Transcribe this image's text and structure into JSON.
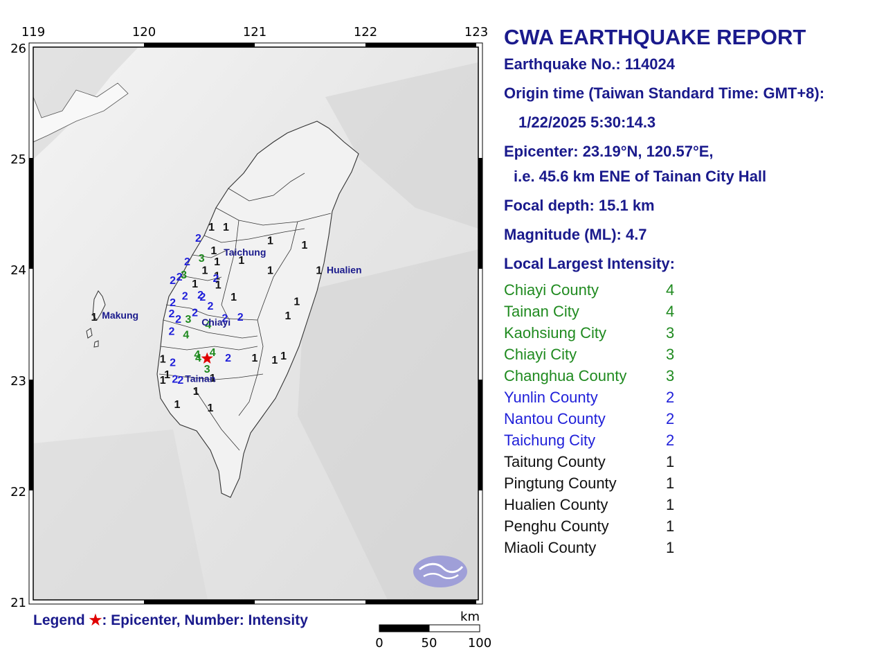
{
  "map": {
    "lon_ticks": [
      "119",
      "120",
      "121",
      "122",
      "123"
    ],
    "lat_ticks": [
      "26",
      "25",
      "24",
      "23",
      "22",
      "21"
    ],
    "cities": [
      {
        "name": "Taichung",
        "lon": 120.72,
        "lat": 24.15
      },
      {
        "name": "Hualien",
        "lon": 121.65,
        "lat": 23.99
      },
      {
        "name": "Makung",
        "lon": 119.62,
        "lat": 23.58
      },
      {
        "name": "Chiayi",
        "lon": 120.52,
        "lat": 23.52
      },
      {
        "name": "Tainan",
        "lon": 120.37,
        "lat": 23.01
      }
    ],
    "epicenter": {
      "lat": 23.19,
      "lon": 120.57
    },
    "intensity_colors": {
      "1": "#111111",
      "2": "#1f1fd9",
      "3": "#1f8a1f",
      "4": "#1f8a1f"
    },
    "intensity_points": [
      {
        "v": 1,
        "lon": 120.61,
        "lat": 24.38
      },
      {
        "v": 1,
        "lon": 120.74,
        "lat": 24.38
      },
      {
        "v": 2,
        "lon": 120.49,
        "lat": 24.28
      },
      {
        "v": 1,
        "lon": 120.63,
        "lat": 24.17
      },
      {
        "v": 1,
        "lon": 121.14,
        "lat": 24.26
      },
      {
        "v": 1,
        "lon": 121.45,
        "lat": 24.22
      },
      {
        "v": 2,
        "lon": 120.39,
        "lat": 24.07
      },
      {
        "v": 3,
        "lon": 120.52,
        "lat": 24.1
      },
      {
        "v": 1,
        "lon": 120.66,
        "lat": 24.07
      },
      {
        "v": 1,
        "lon": 120.88,
        "lat": 24.08
      },
      {
        "v": 1,
        "lon": 120.55,
        "lat": 23.99
      },
      {
        "v": 1,
        "lon": 120.66,
        "lat": 23.94
      },
      {
        "v": 1,
        "lon": 121.14,
        "lat": 23.99
      },
      {
        "v": 1,
        "lon": 121.58,
        "lat": 23.99
      },
      {
        "v": 2,
        "lon": 120.26,
        "lat": 23.9
      },
      {
        "v": 2,
        "lon": 120.32,
        "lat": 23.93
      },
      {
        "v": 3,
        "lon": 120.36,
        "lat": 23.95
      },
      {
        "v": 2,
        "lon": 120.65,
        "lat": 23.92
      },
      {
        "v": 1,
        "lon": 120.67,
        "lat": 23.86
      },
      {
        "v": 1,
        "lon": 120.46,
        "lat": 23.87
      },
      {
        "v": 2,
        "lon": 120.51,
        "lat": 23.77
      },
      {
        "v": 2,
        "lon": 120.53,
        "lat": 23.75
      },
      {
        "v": 2,
        "lon": 120.37,
        "lat": 23.76
      },
      {
        "v": 1,
        "lon": 120.81,
        "lat": 23.75
      },
      {
        "v": 2,
        "lon": 120.26,
        "lat": 23.7
      },
      {
        "v": 2,
        "lon": 120.6,
        "lat": 23.67
      },
      {
        "v": 1,
        "lon": 121.38,
        "lat": 23.71
      },
      {
        "v": 1,
        "lon": 119.55,
        "lat": 23.57
      },
      {
        "v": 2,
        "lon": 120.25,
        "lat": 23.6
      },
      {
        "v": 2,
        "lon": 120.46,
        "lat": 23.61
      },
      {
        "v": 2,
        "lon": 120.31,
        "lat": 23.55
      },
      {
        "v": 3,
        "lon": 120.4,
        "lat": 23.55
      },
      {
        "v": 4,
        "lon": 120.58,
        "lat": 23.5
      },
      {
        "v": 2,
        "lon": 120.73,
        "lat": 23.56
      },
      {
        "v": 2,
        "lon": 120.87,
        "lat": 23.57
      },
      {
        "v": 1,
        "lon": 121.3,
        "lat": 23.58
      },
      {
        "v": 2,
        "lon": 120.25,
        "lat": 23.44
      },
      {
        "v": 4,
        "lon": 120.38,
        "lat": 23.41
      },
      {
        "v": 4,
        "lon": 120.48,
        "lat": 23.23
      },
      {
        "v": 4,
        "lon": 120.49,
        "lat": 23.2
      },
      {
        "v": 4,
        "lon": 120.62,
        "lat": 23.25
      },
      {
        "v": 2,
        "lon": 120.76,
        "lat": 23.2
      },
      {
        "v": 1,
        "lon": 121.0,
        "lat": 23.2
      },
      {
        "v": 1,
        "lon": 121.18,
        "lat": 23.18
      },
      {
        "v": 1,
        "lon": 121.26,
        "lat": 23.22
      },
      {
        "v": 1,
        "lon": 120.17,
        "lat": 23.19
      },
      {
        "v": 2,
        "lon": 120.26,
        "lat": 23.16
      },
      {
        "v": 3,
        "lon": 120.57,
        "lat": 23.1
      },
      {
        "v": 1,
        "lon": 120.21,
        "lat": 23.05
      },
      {
        "v": 2,
        "lon": 120.28,
        "lat": 23.01
      },
      {
        "v": 2,
        "lon": 120.33,
        "lat": 23.0
      },
      {
        "v": 1,
        "lon": 120.17,
        "lat": 23.0
      },
      {
        "v": 1,
        "lon": 120.62,
        "lat": 23.02
      },
      {
        "v": 1,
        "lon": 120.47,
        "lat": 22.9
      },
      {
        "v": 1,
        "lon": 120.3,
        "lat": 22.78
      },
      {
        "v": 1,
        "lon": 120.6,
        "lat": 22.75
      }
    ]
  },
  "legend": {
    "prefix": "Legend ",
    "star": "★",
    "text": ": Epicenter, Number: Intensity"
  },
  "scale_bar": {
    "unit": "km",
    "labels": [
      "0",
      "50",
      "100"
    ]
  },
  "report": {
    "title": "CWA EARTHQUAKE REPORT",
    "earthquake_no": "Earthquake No.: 114024",
    "origin_time_label": "Origin time (Taiwan Standard Time: GMT+8):",
    "origin_time_value": "1/22/2025  5:30:14.3",
    "epicenter_line": "Epicenter: 23.19°N, 120.57°E,",
    "epicenter_ref": "i.e. 45.6 km ENE of Tainan City Hall",
    "focal_depth": "Focal depth: 15.1 km",
    "magnitude": "Magnitude (ML): 4.7",
    "intensity_heading": "Local Largest Intensity:",
    "intensities": [
      {
        "region": "Chiayi County",
        "value": "4",
        "color": "#1f8a1f"
      },
      {
        "region": "Tainan City",
        "value": "4",
        "color": "#1f8a1f"
      },
      {
        "region": "Kaohsiung City",
        "value": "3",
        "color": "#1f8a1f"
      },
      {
        "region": "Chiayi City",
        "value": "3",
        "color": "#1f8a1f"
      },
      {
        "region": "Changhua County",
        "value": "3",
        "color": "#1f8a1f"
      },
      {
        "region": "Yunlin County",
        "value": "2",
        "color": "#1f1fd9"
      },
      {
        "region": "Nantou County",
        "value": "2",
        "color": "#1f1fd9"
      },
      {
        "region": "Taichung City",
        "value": "2",
        "color": "#1f1fd9"
      },
      {
        "region": "Taitung County",
        "value": "1",
        "color": "#111111"
      },
      {
        "region": "Pingtung County",
        "value": "1",
        "color": "#111111"
      },
      {
        "region": "Hualien County",
        "value": "1",
        "color": "#111111"
      },
      {
        "region": "Penghu County",
        "value": "1",
        "color": "#111111"
      },
      {
        "region": "Miaoli County",
        "value": "1",
        "color": "#111111"
      }
    ]
  }
}
